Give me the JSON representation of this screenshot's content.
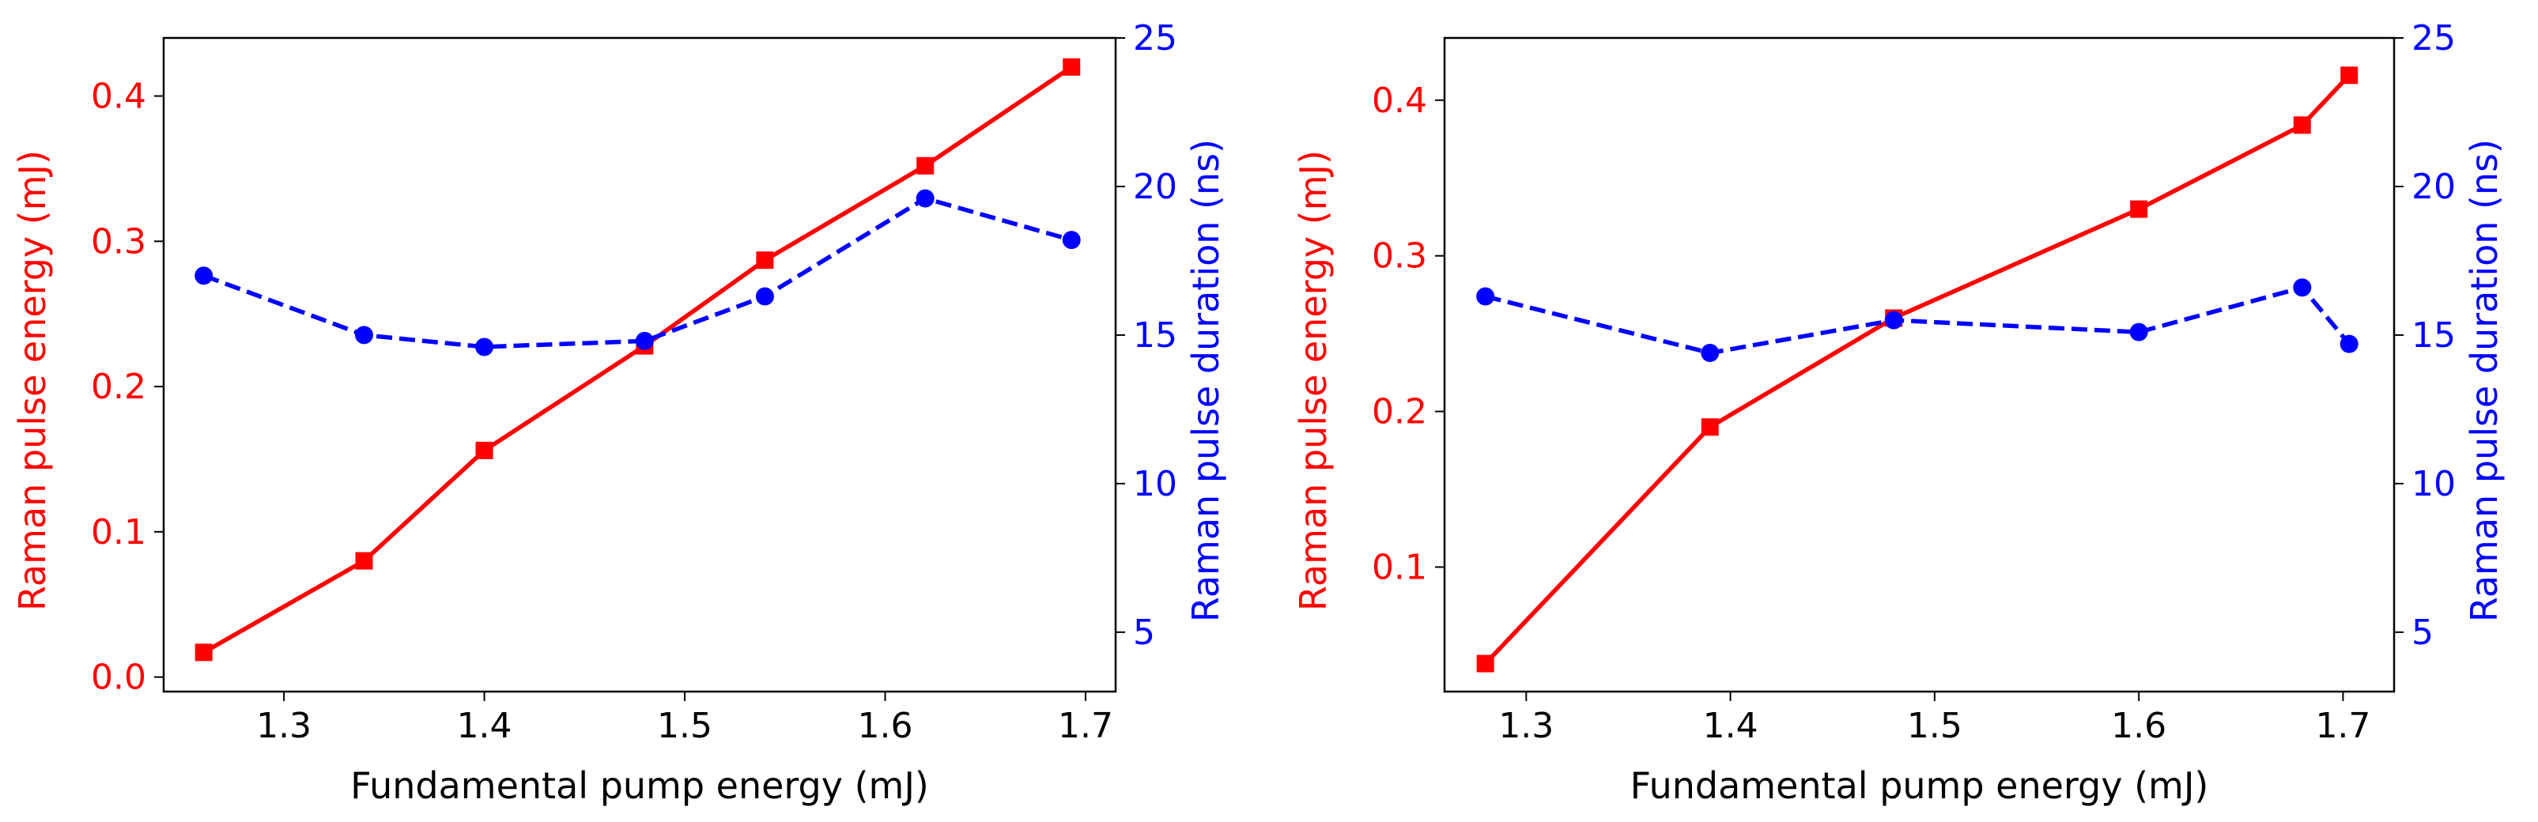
{
  "colors": {
    "energy": "#ff0000",
    "duration": "#0000ff",
    "axis": "#000000"
  },
  "chart_data": [
    {
      "type": "line",
      "xlabel": "Fundamental pump energy (mJ)",
      "ylabel_left": "Raman pulse energy (mJ)",
      "ylabel_right": "Raman pulse duration (ns)",
      "xlim": [
        1.24,
        1.715
      ],
      "ylim_left": [
        -0.01,
        0.44
      ],
      "ylim_right": [
        3,
        25
      ],
      "xticks": [
        1.3,
        1.4,
        1.5,
        1.6,
        1.7
      ],
      "xtick_labels": [
        "1.3",
        "1.4",
        "1.5",
        "1.6",
        "1.7"
      ],
      "yticks_left": [
        0.0,
        0.1,
        0.2,
        0.3,
        0.4
      ],
      "ytick_labels_left": [
        "0.0",
        "0.1",
        "0.2",
        "0.3",
        "0.4"
      ],
      "yticks_right": [
        5,
        10,
        15,
        20,
        25
      ],
      "ytick_labels_right": [
        "5",
        "10",
        "15",
        "20",
        "25"
      ],
      "series": [
        {
          "name": "Raman pulse energy",
          "axis": "left",
          "marker": "square",
          "linestyle": "solid",
          "x": [
            1.26,
            1.34,
            1.4,
            1.48,
            1.54,
            1.62,
            1.693
          ],
          "y": [
            0.017,
            0.08,
            0.156,
            0.228,
            0.287,
            0.352,
            0.42
          ]
        },
        {
          "name": "Raman pulse duration",
          "axis": "right",
          "marker": "circle",
          "linestyle": "dashed",
          "x": [
            1.26,
            1.34,
            1.4,
            1.48,
            1.54,
            1.62,
            1.693
          ],
          "y": [
            17.0,
            15.0,
            14.6,
            14.8,
            16.3,
            19.6,
            18.2
          ]
        }
      ]
    },
    {
      "type": "line",
      "xlabel": "Fundamental pump energy (mJ)",
      "ylabel_left": "Raman pulse energy (mJ)",
      "ylabel_right": "Raman pulse duration (ns)",
      "xlim": [
        1.26,
        1.725
      ],
      "ylim_left": [
        0.02,
        0.44
      ],
      "ylim_right": [
        3,
        25
      ],
      "xticks": [
        1.3,
        1.4,
        1.5,
        1.6,
        1.7
      ],
      "xtick_labels": [
        "1.3",
        "1.4",
        "1.5",
        "1.6",
        "1.7"
      ],
      "yticks_left": [
        0.1,
        0.2,
        0.3,
        0.4
      ],
      "ytick_labels_left": [
        "0.1",
        "0.2",
        "0.3",
        "0.4"
      ],
      "yticks_right": [
        5,
        10,
        15,
        20,
        25
      ],
      "ytick_labels_right": [
        "5",
        "10",
        "15",
        "20",
        "25"
      ],
      "series": [
        {
          "name": "Raman pulse energy",
          "axis": "left",
          "marker": "square",
          "linestyle": "solid",
          "x": [
            1.28,
            1.39,
            1.48,
            1.6,
            1.68,
            1.703
          ],
          "y": [
            0.038,
            0.19,
            0.26,
            0.33,
            0.384,
            0.416
          ]
        },
        {
          "name": "Raman pulse duration",
          "axis": "right",
          "marker": "circle",
          "linestyle": "dashed",
          "x": [
            1.28,
            1.39,
            1.48,
            1.6,
            1.68,
            1.703
          ],
          "y": [
            16.3,
            14.4,
            15.5,
            15.1,
            16.6,
            14.7
          ]
        }
      ]
    }
  ]
}
